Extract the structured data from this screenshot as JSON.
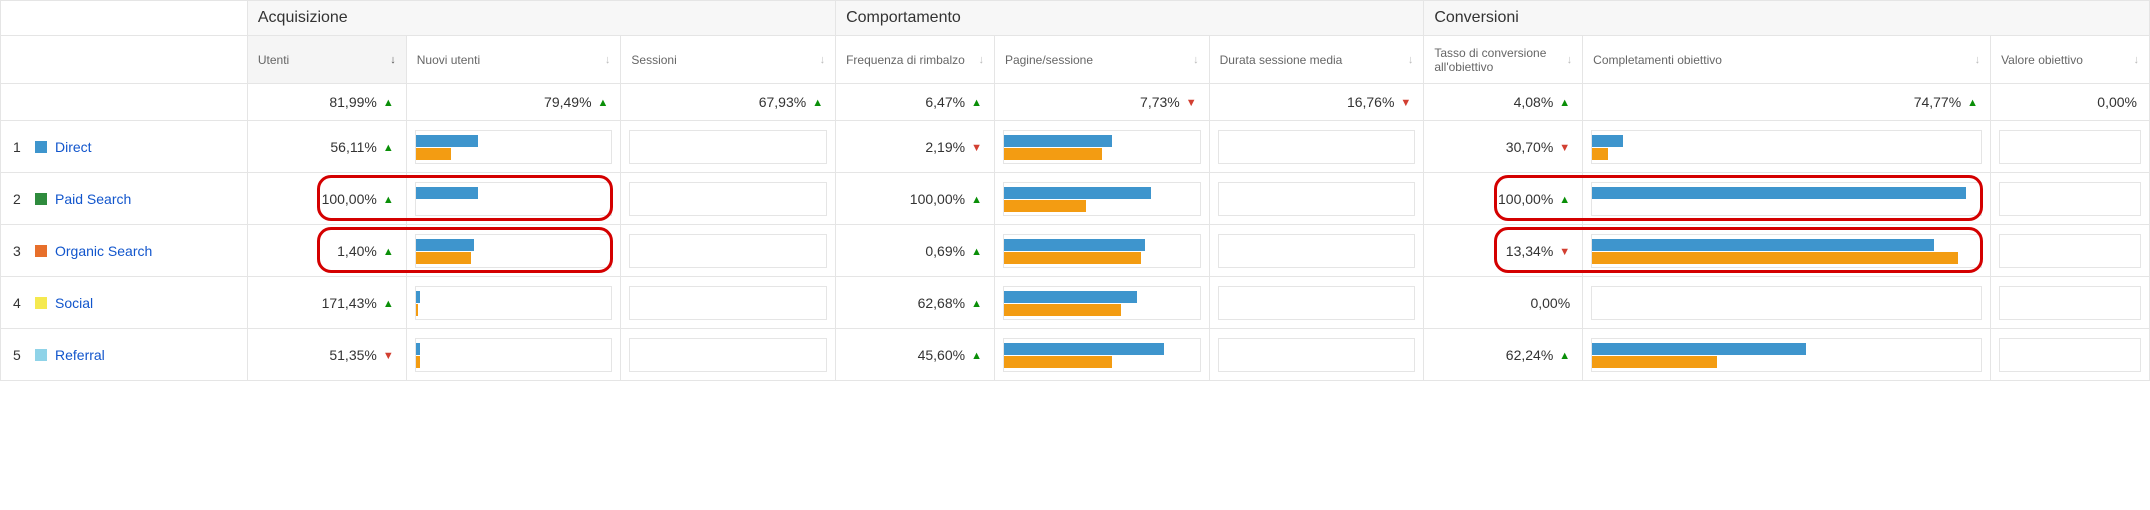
{
  "colors": {
    "bar_primary": "#3e95cd",
    "bar_secondary": "#f39c12",
    "trend_up": "#0a8f08",
    "trend_down": "#d23f31",
    "highlight_border": "#d40000",
    "link": "#1155cc",
    "grid": "#e5e5e5",
    "group_bg": "#f7f7f7"
  },
  "groups": {
    "g1": "Acquisizione",
    "g2": "Comportamento",
    "g3": "Conversioni"
  },
  "columns": {
    "c1": "Utenti",
    "c2": "Nuovi utenti",
    "c3": "Sessioni",
    "c4": "Frequenza di rimbalzo",
    "c5": "Pagine/sessione",
    "c6": "Durata sessione media",
    "c7": "Tasso di conversione all'obiettivo",
    "c8": "Completamenti obiettivo",
    "c9": "Valore obiettivo"
  },
  "summary": {
    "c1": {
      "value": "81,99%",
      "trend": "up"
    },
    "c2": {
      "value": "79,49%",
      "trend": "up"
    },
    "c3": {
      "value": "67,93%",
      "trend": "up"
    },
    "c4": {
      "value": "6,47%",
      "trend": "up"
    },
    "c5": {
      "value": "7,73%",
      "trend": "down"
    },
    "c6": {
      "value": "16,76%",
      "trend": "down"
    },
    "c7": {
      "value": "4,08%",
      "trend": "up"
    },
    "c8": {
      "value": "74,77%",
      "trend": "up"
    },
    "c9": {
      "value": "0,00%",
      "trend": null
    }
  },
  "channels": [
    {
      "idx": "1",
      "name": "Direct",
      "swatch": "#3e95cd"
    },
    {
      "idx": "2",
      "name": "Paid Search",
      "swatch": "#2e8b3d"
    },
    {
      "idx": "3",
      "name": "Organic Search",
      "swatch": "#e76f2b"
    },
    {
      "idx": "4",
      "name": "Social",
      "swatch": "#f5e94f"
    },
    {
      "idx": "5",
      "name": "Referral",
      "swatch": "#8fd3e8"
    }
  ],
  "rows": [
    {
      "utenti": {
        "value": "56,11%",
        "trend": "up"
      },
      "nuovi_utenti": {
        "bar1": 32,
        "bar2": 18
      },
      "sessioni": {
        "bar1": 0,
        "bar2": 0
      },
      "freq": {
        "value": "2,19%",
        "trend": "down"
      },
      "pag": {
        "bar1": 55,
        "bar2": 50
      },
      "dur": {
        "bar1": 0,
        "bar2": 0
      },
      "conv": {
        "value": "30,70%",
        "trend": "down"
      },
      "compl": {
        "bar1": 8,
        "bar2": 4
      },
      "val": {
        "bar1": 0,
        "bar2": 0
      }
    },
    {
      "utenti": {
        "value": "100,00%",
        "trend": "up",
        "highlight": true
      },
      "nuovi_utenti": {
        "bar1": 32,
        "bar2": 0,
        "highlight": true
      },
      "sessioni": {
        "bar1": 0,
        "bar2": 0
      },
      "freq": {
        "value": "100,00%",
        "trend": "up"
      },
      "pag": {
        "bar1": 75,
        "bar2": 42
      },
      "dur": {
        "bar1": 0,
        "bar2": 0
      },
      "conv": {
        "value": "100,00%",
        "trend": "up",
        "highlight": true
      },
      "compl": {
        "bar1": 96,
        "bar2": 0,
        "highlight": true
      },
      "val": {
        "bar1": 0,
        "bar2": 0
      }
    },
    {
      "utenti": {
        "value": "1,40%",
        "trend": "up",
        "highlight": true
      },
      "nuovi_utenti": {
        "bar1": 30,
        "bar2": 28,
        "highlight": true
      },
      "sessioni": {
        "bar1": 0,
        "bar2": 0
      },
      "freq": {
        "value": "0,69%",
        "trend": "up"
      },
      "pag": {
        "bar1": 72,
        "bar2": 70
      },
      "dur": {
        "bar1": 0,
        "bar2": 0
      },
      "conv": {
        "value": "13,34%",
        "trend": "down",
        "highlight": true
      },
      "compl": {
        "bar1": 88,
        "bar2": 94,
        "highlight": true
      },
      "val": {
        "bar1": 0,
        "bar2": 0
      }
    },
    {
      "utenti": {
        "value": "171,43%",
        "trend": "up"
      },
      "nuovi_utenti": {
        "bar1": 2,
        "bar2": 1
      },
      "sessioni": {
        "bar1": 0,
        "bar2": 0
      },
      "freq": {
        "value": "62,68%",
        "trend": "up"
      },
      "pag": {
        "bar1": 68,
        "bar2": 60
      },
      "dur": {
        "bar1": 0,
        "bar2": 0
      },
      "conv": {
        "value": "0,00%",
        "trend": null
      },
      "compl": {
        "bar1": 0,
        "bar2": 0
      },
      "val": {
        "bar1": 0,
        "bar2": 0
      }
    },
    {
      "utenti": {
        "value": "51,35%",
        "trend": "down"
      },
      "nuovi_utenti": {
        "bar1": 2,
        "bar2": 2
      },
      "sessioni": {
        "bar1": 0,
        "bar2": 0
      },
      "freq": {
        "value": "45,60%",
        "trend": "up"
      },
      "pag": {
        "bar1": 82,
        "bar2": 55
      },
      "dur": {
        "bar1": 0,
        "bar2": 0
      },
      "conv": {
        "value": "62,24%",
        "trend": "up"
      },
      "compl": {
        "bar1": 55,
        "bar2": 32
      },
      "val": {
        "bar1": 0,
        "bar2": 0
      }
    }
  ],
  "layout": {
    "label_col_w": 230,
    "metric_col_w": 148,
    "bar_col_w": 200,
    "val_col_w": 148
  }
}
